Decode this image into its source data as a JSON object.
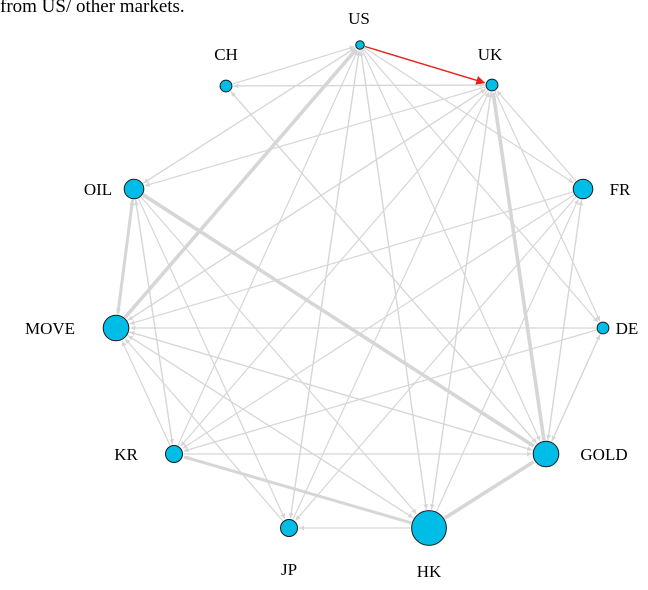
{
  "caption": "from US/ other markets.",
  "colors": {
    "node_fill": "#00bde8",
    "node_stroke": "#1a1a1a",
    "edge": "#d6d6d6",
    "highlight_edge": "#e8211c"
  },
  "nodes": [
    {
      "id": "US",
      "label": "US",
      "size": 0.5
    },
    {
      "id": "UK",
      "label": "UK",
      "size": 0.7
    },
    {
      "id": "CH",
      "label": "CH",
      "size": 0.7
    },
    {
      "id": "OIL",
      "label": "OIL",
      "size": 1.15
    },
    {
      "id": "FR",
      "label": "FR",
      "size": 1.15
    },
    {
      "id": "MOVE",
      "label": "MOVE",
      "size": 1.5
    },
    {
      "id": "DE",
      "label": "DE",
      "size": 0.7
    },
    {
      "id": "KR",
      "label": "KR",
      "size": 1.0
    },
    {
      "id": "GOLD",
      "label": "GOLD",
      "size": 1.5
    },
    {
      "id": "JP",
      "label": "JP",
      "size": 1.0
    },
    {
      "id": "HK",
      "label": "HK",
      "size": 2.05
    }
  ],
  "edges": [
    {
      "from": "US",
      "to": "UK",
      "weight": 1,
      "highlight": true
    },
    {
      "from": "US",
      "to": "OIL",
      "weight": 1
    },
    {
      "from": "US",
      "to": "FR",
      "weight": 1
    },
    {
      "from": "US",
      "to": "DE",
      "weight": 1
    },
    {
      "from": "US",
      "to": "GOLD",
      "weight": 1
    },
    {
      "from": "US",
      "to": "HK",
      "weight": 1
    },
    {
      "from": "US",
      "to": "JP",
      "weight": 1
    },
    {
      "from": "CH",
      "to": "US",
      "weight": 1
    },
    {
      "from": "CH",
      "to": "UK",
      "weight": 1
    },
    {
      "from": "CH",
      "to": "GOLD",
      "weight": 1
    },
    {
      "from": "UK",
      "to": "CH",
      "weight": 1
    },
    {
      "from": "UK",
      "to": "OIL",
      "weight": 1
    },
    {
      "from": "UK",
      "to": "DE",
      "weight": 1
    },
    {
      "from": "UK",
      "to": "KR",
      "weight": 1
    },
    {
      "from": "UK",
      "to": "HK",
      "weight": 1
    },
    {
      "from": "UK",
      "to": "MOVE",
      "weight": 1
    },
    {
      "from": "FR",
      "to": "UK",
      "weight": 1
    },
    {
      "from": "FR",
      "to": "MOVE",
      "weight": 1
    },
    {
      "from": "FR",
      "to": "KR",
      "weight": 1
    },
    {
      "from": "FR",
      "to": "JP",
      "weight": 1
    },
    {
      "from": "FR",
      "to": "GOLD",
      "weight": 1
    },
    {
      "from": "DE",
      "to": "MOVE",
      "weight": 1
    },
    {
      "from": "DE",
      "to": "KR",
      "weight": 1
    },
    {
      "from": "DE",
      "to": "GOLD",
      "weight": 1
    },
    {
      "from": "OIL",
      "to": "US",
      "weight": 1
    },
    {
      "from": "OIL",
      "to": "MOVE",
      "weight": 2.5
    },
    {
      "from": "OIL",
      "to": "GOLD",
      "weight": 3
    },
    {
      "from": "OIL",
      "to": "JP",
      "weight": 1
    },
    {
      "from": "OIL",
      "to": "HK",
      "weight": 1
    },
    {
      "from": "OIL",
      "to": "KR",
      "weight": 1
    },
    {
      "from": "MOVE",
      "to": "US",
      "weight": 3
    },
    {
      "from": "MOVE",
      "to": "OIL",
      "weight": 1
    },
    {
      "from": "MOVE",
      "to": "UK",
      "weight": 1
    },
    {
      "from": "MOVE",
      "to": "HK",
      "weight": 1
    },
    {
      "from": "MOVE",
      "to": "GOLD",
      "weight": 1
    },
    {
      "from": "KR",
      "to": "US",
      "weight": 1
    },
    {
      "from": "KR",
      "to": "MOVE",
      "weight": 1
    },
    {
      "from": "KR",
      "to": "OIL",
      "weight": 1
    },
    {
      "from": "KR",
      "to": "GOLD",
      "weight": 1
    },
    {
      "from": "JP",
      "to": "US",
      "weight": 1
    },
    {
      "from": "JP",
      "to": "MOVE",
      "weight": 1
    },
    {
      "from": "JP",
      "to": "UK",
      "weight": 1
    },
    {
      "from": "HK",
      "to": "US",
      "weight": 1
    },
    {
      "from": "HK",
      "to": "UK",
      "weight": 1
    },
    {
      "from": "HK",
      "to": "KR",
      "weight": 2.5
    },
    {
      "from": "HK",
      "to": "JP",
      "weight": 1
    },
    {
      "from": "HK",
      "to": "GOLD",
      "weight": 3
    },
    {
      "from": "HK",
      "to": "MOVE",
      "weight": 1
    },
    {
      "from": "HK",
      "to": "FR",
      "weight": 1
    },
    {
      "from": "GOLD",
      "to": "UK",
      "weight": 3
    },
    {
      "from": "GOLD",
      "to": "MOVE",
      "weight": 1
    },
    {
      "from": "GOLD",
      "to": "DE",
      "weight": 1
    },
    {
      "from": "GOLD",
      "to": "CH",
      "weight": 1
    },
    {
      "from": "GOLD",
      "to": "FR",
      "weight": 1
    }
  ]
}
